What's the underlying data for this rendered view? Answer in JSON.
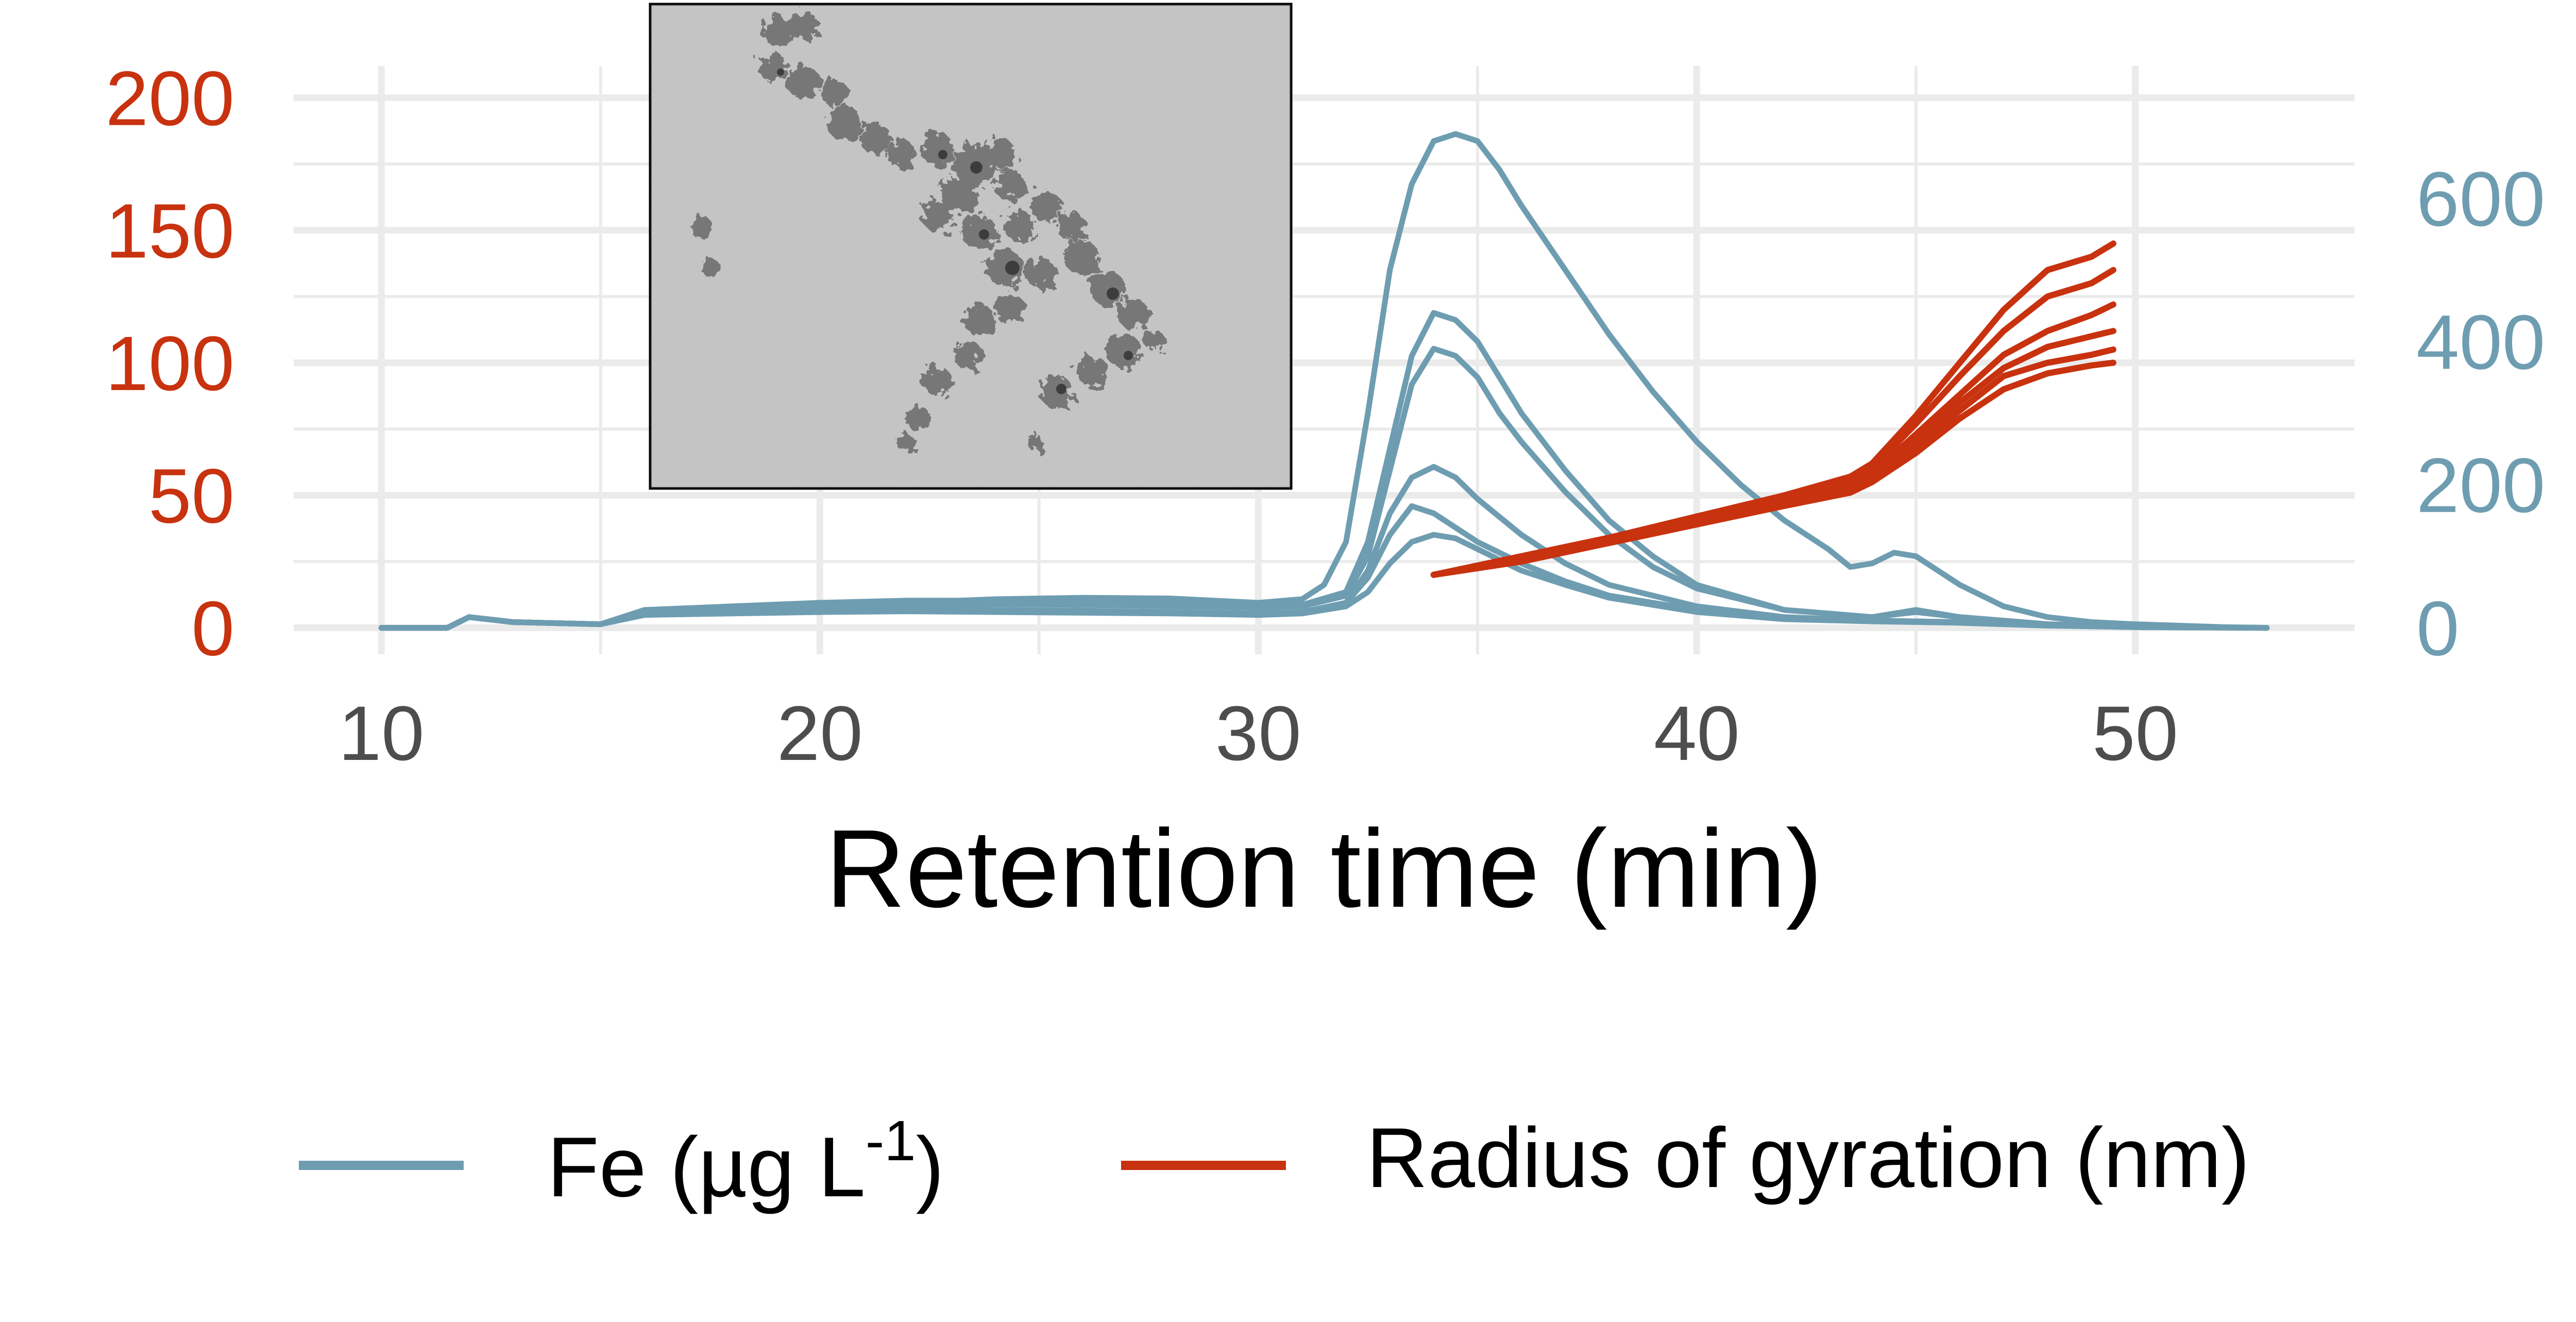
{
  "chart_data": {
    "type": "line",
    "title": "",
    "xlabel": "Retention time (min)",
    "ylabel_left": "",
    "ylabel_right": "",
    "xlim": [
      8,
      55
    ],
    "ylim_left": [
      -10,
      212
    ],
    "ylim_right": [
      -37,
      785
    ],
    "x_ticks": [
      "10",
      "20",
      "30",
      "40",
      "50"
    ],
    "y_left_ticks": [
      "0",
      "50",
      "100",
      "150",
      "200"
    ],
    "y_right_ticks": [
      "0",
      "200",
      "400",
      "600"
    ],
    "grid": true,
    "legend_position": "bottom",
    "colors": {
      "fe": "#6e9db1",
      "rg": "#c8320f",
      "grid": "#ebebeb"
    },
    "legend": [
      {
        "label": "Fe (µg L",
        "superscript": "-1",
        "suffix": ")",
        "color": "#6e9db1"
      },
      {
        "label": "Radius of gyration (nm)",
        "color": "#c8320f"
      }
    ],
    "fe_series": [
      {
        "axis": "right",
        "x": [
          10,
          11.5,
          12,
          13,
          15,
          16,
          18,
          20,
          22,
          24,
          26,
          28,
          30,
          31,
          31.5,
          32,
          32.5,
          33,
          33.5,
          34,
          34.5,
          35,
          35.5,
          36,
          37,
          38,
          39,
          40,
          41,
          42,
          43,
          43.5,
          44,
          44.5,
          45,
          46,
          47,
          48,
          49,
          50,
          51,
          52,
          53
        ],
        "y": [
          0,
          0,
          15,
          8,
          5,
          22,
          25,
          33,
          35,
          40,
          42,
          41,
          35,
          40,
          60,
          120,
          300,
          500,
          620,
          680,
          690,
          680,
          640,
          590,
          500,
          410,
          330,
          260,
          200,
          150,
          110,
          85,
          90,
          105,
          100,
          60,
          30,
          15,
          8,
          5,
          3,
          1,
          0
        ]
      },
      {
        "axis": "right",
        "x": [
          10,
          11.5,
          12,
          13,
          15,
          16,
          18,
          20,
          22,
          24,
          26,
          28,
          30,
          31,
          32,
          32.5,
          33,
          33.5,
          34,
          34.5,
          35,
          35.5,
          36,
          37,
          38,
          39,
          40,
          42,
          44,
          45,
          46,
          48,
          50,
          53
        ],
        "y": [
          0,
          0,
          15,
          8,
          5,
          25,
          30,
          35,
          38,
          38,
          37,
          35,
          30,
          32,
          50,
          120,
          250,
          380,
          440,
          430,
          400,
          350,
          300,
          220,
          150,
          100,
          60,
          25,
          15,
          25,
          15,
          5,
          2,
          0
        ]
      },
      {
        "axis": "right",
        "x": [
          10,
          11.5,
          12,
          13,
          15,
          16,
          18,
          20,
          22,
          24,
          26,
          28,
          30,
          31,
          32,
          32.5,
          33,
          33.5,
          34,
          34.5,
          35,
          35.5,
          36,
          37,
          38,
          39,
          40,
          42,
          44,
          45,
          46,
          48,
          50,
          53
        ],
        "y": [
          0,
          0,
          15,
          8,
          5,
          22,
          28,
          30,
          32,
          33,
          32,
          30,
          28,
          30,
          45,
          100,
          220,
          340,
          390,
          380,
          350,
          300,
          260,
          190,
          130,
          85,
          55,
          25,
          15,
          22,
          15,
          5,
          2,
          0
        ]
      },
      {
        "axis": "right",
        "x": [
          10,
          11.5,
          12,
          13,
          15,
          16,
          18,
          20,
          22,
          24,
          26,
          28,
          30,
          31,
          32,
          32.5,
          33,
          33.5,
          34,
          34.5,
          35,
          36,
          37,
          38,
          40,
          42,
          44,
          46,
          48,
          50,
          53
        ],
        "y": [
          0,
          0,
          15,
          8,
          5,
          20,
          22,
          25,
          26,
          25,
          24,
          22,
          20,
          22,
          35,
          80,
          160,
          210,
          225,
          210,
          180,
          130,
          90,
          60,
          30,
          15,
          10,
          8,
          4,
          1,
          0
        ]
      },
      {
        "axis": "right",
        "x": [
          10,
          11.5,
          12,
          13,
          15,
          16,
          18,
          20,
          22,
          24,
          26,
          28,
          30,
          31,
          32,
          32.5,
          33,
          33.5,
          34,
          34.5,
          35,
          36,
          37,
          38,
          40,
          42,
          44,
          46,
          48,
          50,
          53
        ],
        "y": [
          0,
          0,
          15,
          8,
          5,
          20,
          22,
          25,
          26,
          25,
          24,
          22,
          20,
          22,
          35,
          70,
          130,
          170,
          160,
          140,
          120,
          90,
          65,
          45,
          25,
          14,
          10,
          8,
          4,
          1,
          0
        ]
      },
      {
        "axis": "right",
        "x": [
          10,
          11.5,
          12,
          13,
          15,
          16,
          18,
          20,
          22,
          24,
          26,
          28,
          30,
          31,
          32,
          32.5,
          33,
          33.5,
          34,
          34.5,
          35,
          36,
          37,
          38,
          40,
          42,
          44,
          46,
          48,
          50,
          53
        ],
        "y": [
          0,
          0,
          15,
          8,
          5,
          18,
          20,
          22,
          23,
          22,
          21,
          20,
          18,
          20,
          30,
          50,
          90,
          120,
          130,
          125,
          110,
          80,
          60,
          42,
          22,
          12,
          9,
          7,
          3,
          1,
          0
        ]
      }
    ],
    "rg_series": [
      {
        "axis": "left",
        "x": [
          34,
          36,
          38,
          40,
          42,
          43.5,
          44,
          45,
          46,
          47,
          48,
          49,
          49.5
        ],
        "y": [
          20,
          27,
          34,
          42,
          50,
          57,
          62,
          80,
          100,
          120,
          135,
          140,
          145
        ]
      },
      {
        "axis": "left",
        "x": [
          34,
          36,
          38,
          40,
          42,
          43.5,
          44,
          45,
          46,
          47,
          48,
          49,
          49.5
        ],
        "y": [
          20,
          27,
          34,
          41,
          49,
          55,
          60,
          77,
          95,
          112,
          125,
          130,
          135
        ]
      },
      {
        "axis": "left",
        "x": [
          34,
          36,
          38,
          40,
          42,
          43.5,
          44,
          45,
          46,
          47,
          48,
          49,
          49.5
        ],
        "y": [
          20,
          26,
          33,
          40,
          48,
          54,
          58,
          73,
          88,
          103,
          112,
          118,
          122
        ]
      },
      {
        "axis": "left",
        "x": [
          34,
          36,
          38,
          40,
          42,
          43.5,
          44,
          45,
          46,
          47,
          48,
          49,
          49.5
        ],
        "y": [
          20,
          26,
          33,
          40,
          48,
          53,
          57,
          70,
          85,
          98,
          106,
          110,
          112
        ]
      },
      {
        "axis": "left",
        "x": [
          34,
          36,
          38,
          40,
          42,
          43.5,
          44,
          45,
          46,
          47,
          48,
          49,
          49.5
        ],
        "y": [
          20,
          26,
          32,
          39,
          47,
          52,
          56,
          68,
          82,
          95,
          100,
          103,
          105
        ]
      },
      {
        "axis": "left",
        "x": [
          34,
          36,
          38,
          40,
          42,
          43.5,
          44,
          45,
          46,
          47,
          48,
          49,
          49.5
        ],
        "y": [
          20,
          25,
          32,
          39,
          46,
          51,
          55,
          66,
          79,
          90,
          96,
          99,
          100
        ]
      }
    ],
    "inset": {
      "content": "micrograph of nanoparticle aggregates"
    }
  }
}
